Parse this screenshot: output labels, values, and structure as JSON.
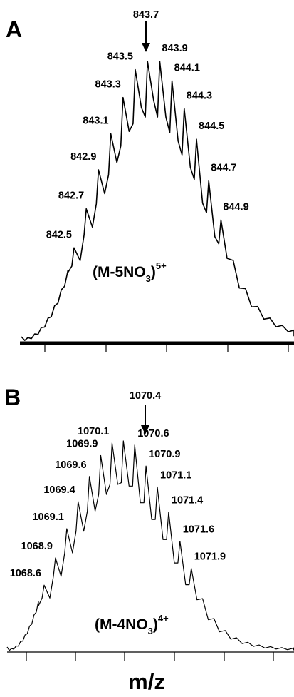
{
  "chart_data": [
    {
      "type": "line",
      "panel": "A",
      "xlabel": "",
      "ylabel": "",
      "marked_peak": "843.7",
      "ion": {
        "main": "(M-5NO",
        "sub": "3",
        "close": ")",
        "charge": "5+"
      },
      "peaks": [
        {
          "mz": 842.5,
          "label": "842.5",
          "rel": 0.33
        },
        {
          "mz": 842.7,
          "label": "842.7",
          "rel": 0.47
        },
        {
          "mz": 842.9,
          "label": "842.9",
          "rel": 0.61
        },
        {
          "mz": 843.1,
          "label": "843.1",
          "rel": 0.74
        },
        {
          "mz": 843.3,
          "label": "843.3",
          "rel": 0.87
        },
        {
          "mz": 843.5,
          "label": "843.5",
          "rel": 0.97
        },
        {
          "mz": 843.7,
          "label": "843.7",
          "rel": 1.0
        },
        {
          "mz": 843.9,
          "label": "843.9",
          "rel": 1.0
        },
        {
          "mz": 844.1,
          "label": "844.1",
          "rel": 0.93
        },
        {
          "mz": 844.3,
          "label": "844.3",
          "rel": 0.83
        },
        {
          "mz": 844.5,
          "label": "844.5",
          "rel": 0.72
        },
        {
          "mz": 844.7,
          "label": "844.7",
          "rel": 0.57
        },
        {
          "mz": 844.9,
          "label": "844.9",
          "rel": 0.43
        }
      ]
    },
    {
      "type": "line",
      "panel": "B",
      "xlabel": "m/z",
      "ylabel": "",
      "marked_peak": "1070.4",
      "ion": {
        "main": "(M-4NO",
        "sub": "3",
        "close": ")",
        "charge": "4+"
      },
      "peaks": [
        {
          "mz": 1068.6,
          "label": "1068.6",
          "rel": 0.31
        },
        {
          "mz": 1068.9,
          "label": "1068.9",
          "rel": 0.44
        },
        {
          "mz": 1069.1,
          "label": "1069.1",
          "rel": 0.58
        },
        {
          "mz": 1069.4,
          "label": "1069.4",
          "rel": 0.71
        },
        {
          "mz": 1069.6,
          "label": "1069.6",
          "rel": 0.83
        },
        {
          "mz": 1069.9,
          "label": "1069.9",
          "rel": 0.93
        },
        {
          "mz": 1070.1,
          "label": "1070.1",
          "rel": 0.99
        },
        {
          "mz": 1070.4,
          "label": "1070.4",
          "rel": 1.0
        },
        {
          "mz": 1070.6,
          "label": "1070.6",
          "rel": 0.98
        },
        {
          "mz": 1070.9,
          "label": "1070.9",
          "rel": 0.88
        },
        {
          "mz": 1071.1,
          "label": "1071.1",
          "rel": 0.78
        },
        {
          "mz": 1071.4,
          "label": "1071.4",
          "rel": 0.66
        },
        {
          "mz": 1071.6,
          "label": "1071.6",
          "rel": 0.52
        },
        {
          "mz": 1071.9,
          "label": "1071.9",
          "rel": 0.39
        }
      ]
    }
  ]
}
